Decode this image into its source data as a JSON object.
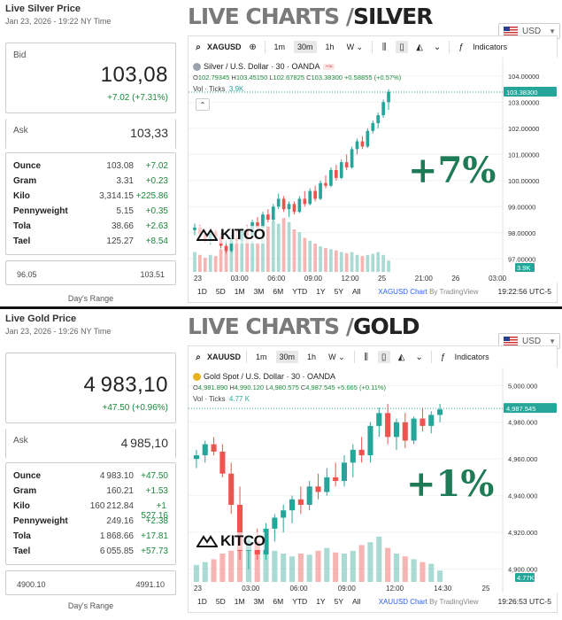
{
  "silver": {
    "card": {
      "title": "Live Silver Price",
      "date": "Jan 23, 2026 - 19:22 NY Time",
      "currency": "USD",
      "bid_label": "Bid",
      "bid": "103,08",
      "change": "+7.02 (+7.31%)",
      "ask_label": "Ask",
      "ask": "103,33",
      "units": [
        {
          "unit": "Ounce",
          "price": "103.08",
          "change": "+7.02"
        },
        {
          "unit": "Gram",
          "price": "3.31",
          "change": "+0.23"
        },
        {
          "unit": "Kilo",
          "price": "3,314.15",
          "change": "+225.86"
        },
        {
          "unit": "Pennyweight",
          "price": "5.15",
          "change": "+0.35"
        },
        {
          "unit": "Tola",
          "price": "38.66",
          "change": "+2.63"
        },
        {
          "unit": "Tael",
          "price": "125.27",
          "change": "+8.54"
        }
      ],
      "range_low": "96.05",
      "range_high": "103.51",
      "range_label": "Day's Range"
    },
    "header_light": "LIVE CHARTS / ",
    "header_dark": "SILVER",
    "toolbar": {
      "symbol": "XAGUSD",
      "intervals": [
        "1m",
        "30m",
        "1h"
      ],
      "active_interval": "30m",
      "w": "W",
      "indicators": "Indicators"
    },
    "legend": {
      "name": "Silver / U.S. Dollar · 30 · OANDA",
      "o": "102.79345",
      "h": "103.45150",
      "l": "102.67825",
      "c": "103.38300",
      "chg": "+0.58855 (+0.57%)",
      "vol_label": "Vol · Ticks",
      "vol": "3.9K"
    },
    "bottom": {
      "ranges": [
        "1D",
        "5D",
        "1M",
        "3M",
        "6M",
        "YTD",
        "1Y",
        "5Y",
        "All"
      ],
      "source": "XAGUSD Chart",
      "by": "By TradingView",
      "time": "19:22:56 UTC-5"
    },
    "pct": "+7%",
    "logo": "KITCO",
    "colors": {
      "up": "#26a69a",
      "down": "#ef5350",
      "price_tag": "#26a69a",
      "accent": "#1e7a57"
    },
    "chart_data": {
      "type": "candlestick",
      "y_ticks": [
        "104.00000",
        "103.00000",
        "102.00000",
        "101.00000",
        "100.00000",
        "99.00000",
        "98.00000",
        "97.00000"
      ],
      "ylim": [
        96.5,
        104.3
      ],
      "x_ticks": [
        "23",
        "03:00",
        "06:00",
        "09:00",
        "12:00",
        "25",
        "21:00",
        "26",
        "03:00"
      ],
      "last_price": "103.38300",
      "volume_tag": "3.9K",
      "candles": [
        [
          98.1,
          98.35,
          97.9,
          98.2
        ],
        [
          98.2,
          98.3,
          97.85,
          97.95
        ],
        [
          97.95,
          98.15,
          97.6,
          97.7
        ],
        [
          97.7,
          98.1,
          97.55,
          98.05
        ],
        [
          98.05,
          98.15,
          97.8,
          97.85
        ],
        [
          97.85,
          98.0,
          97.4,
          97.5
        ],
        [
          97.5,
          97.7,
          97.2,
          97.3
        ],
        [
          97.3,
          97.9,
          97.25,
          97.8
        ],
        [
          97.8,
          98.1,
          97.6,
          97.7
        ],
        [
          97.7,
          98.2,
          97.6,
          98.1
        ],
        [
          98.1,
          98.3,
          97.8,
          97.9
        ],
        [
          97.9,
          98.5,
          97.85,
          98.4
        ],
        [
          98.4,
          98.6,
          98.1,
          98.2
        ],
        [
          98.2,
          98.8,
          98.15,
          98.7
        ],
        [
          98.7,
          98.9,
          98.4,
          98.5
        ],
        [
          98.5,
          99.1,
          98.45,
          99.0
        ],
        [
          99.0,
          99.5,
          98.9,
          99.3
        ],
        [
          99.3,
          99.4,
          98.8,
          98.9
        ],
        [
          98.9,
          99.2,
          98.6,
          99.1
        ],
        [
          99.1,
          99.2,
          98.7,
          98.8
        ],
        [
          98.8,
          99.4,
          98.75,
          99.3
        ],
        [
          99.3,
          99.6,
          99.0,
          99.1
        ],
        [
          99.1,
          99.7,
          99.05,
          99.6
        ],
        [
          99.6,
          99.8,
          99.2,
          99.3
        ],
        [
          99.3,
          100.0,
          99.25,
          99.9
        ],
        [
          99.9,
          100.2,
          99.7,
          99.8
        ],
        [
          99.8,
          100.5,
          99.75,
          100.4
        ],
        [
          100.4,
          100.6,
          100.0,
          100.1
        ],
        [
          100.1,
          100.8,
          100.05,
          100.7
        ],
        [
          100.7,
          101.0,
          100.4,
          100.5
        ],
        [
          100.5,
          101.3,
          100.45,
          101.2
        ],
        [
          101.2,
          101.6,
          101.0,
          101.5
        ],
        [
          101.5,
          101.7,
          101.2,
          101.3
        ],
        [
          101.3,
          102.0,
          101.25,
          101.9
        ],
        [
          101.9,
          102.3,
          101.8,
          102.2
        ],
        [
          102.2,
          102.6,
          102.0,
          102.5
        ],
        [
          102.5,
          103.1,
          102.4,
          103.0
        ],
        [
          103.0,
          103.5,
          102.7,
          103.4
        ]
      ],
      "volumes": [
        0.35,
        0.3,
        0.25,
        0.3,
        0.28,
        0.4,
        0.45,
        0.5,
        0.55,
        0.6,
        0.65,
        0.55,
        0.5,
        0.7,
        0.8,
        0.9,
        0.85,
        0.95,
        0.88,
        0.75,
        0.7,
        0.6,
        0.55,
        0.5,
        0.45,
        0.42,
        0.4,
        0.38,
        0.35,
        0.33,
        0.35,
        0.3,
        0.28,
        0.3,
        0.32,
        0.35,
        0.3,
        0.2
      ]
    }
  },
  "gold": {
    "card": {
      "title": "Live Gold Price",
      "date": "Jan 23, 2026 - 19:26 NY Time",
      "currency": "USD",
      "bid_label": "Bid",
      "bid": "4 983,10",
      "change": "+47.50 (+0.96%)",
      "ask_label": "Ask",
      "ask": "4 985,10",
      "units": [
        {
          "unit": "Ounce",
          "price": "4 983.10",
          "change": "+47.50"
        },
        {
          "unit": "Gram",
          "price": "160.21",
          "change": "+1.53"
        },
        {
          "unit": "Kilo",
          "price": "160 212.84",
          "change": "+1 527.16"
        },
        {
          "unit": "Pennyweight",
          "price": "249.16",
          "change": "+2.38"
        },
        {
          "unit": "Tola",
          "price": "1 868.66",
          "change": "+17.81"
        },
        {
          "unit": "Tael",
          "price": "6 055.85",
          "change": "+57.73"
        }
      ],
      "range_low": "4900.10",
      "range_high": "4991.10",
      "range_label": "Day's Range"
    },
    "header_light": "LIVE CHARTS / ",
    "header_dark": "GOLD",
    "toolbar": {
      "symbol": "XAUUSD",
      "intervals": [
        "1m",
        "30m",
        "1h"
      ],
      "active_interval": "30m",
      "w": "W",
      "indicators": "Indicators"
    },
    "legend": {
      "name": "Gold Spot / U.S. Dollar · 30 · OANDA",
      "o": "4,981.890",
      "h": "4,990.120",
      "l": "4,980.575",
      "c": "4,987.545",
      "chg": "+5.665 (+0.11%)",
      "vol_label": "Vol · Ticks",
      "vol": "4.77 K"
    },
    "bottom": {
      "ranges": [
        "1D",
        "5D",
        "1M",
        "3M",
        "6M",
        "YTD",
        "1Y",
        "5Y",
        "All"
      ],
      "source": "XAUUSD Chart",
      "by": "By TradingView",
      "time": "19:26:53 UTC-5"
    },
    "pct": "+1%",
    "logo": "KITCO",
    "colors": {
      "up": "#26a69a",
      "down": "#ef5350",
      "price_tag": "#26a69a",
      "accent": "#1e7a57"
    },
    "chart_data": {
      "type": "candlestick",
      "y_ticks": [
        "5,000.000",
        "4,980.000",
        "4,960.000",
        "4,940.000",
        "4,920.000",
        "4,900.000"
      ],
      "ylim": [
        4893,
        5004
      ],
      "x_ticks": [
        "23",
        "03:00",
        "06:00",
        "09:00",
        "12:00",
        "14:30",
        "25"
      ],
      "last_price": "4,987.545",
      "volume_tag": "4.77K",
      "candles": [
        [
          4960,
          4965,
          4955,
          4962
        ],
        [
          4962,
          4970,
          4958,
          4968
        ],
        [
          4968,
          4972,
          4962,
          4964
        ],
        [
          4964,
          4968,
          4950,
          4952
        ],
        [
          4952,
          4958,
          4930,
          4935
        ],
        [
          4935,
          4945,
          4905,
          4910
        ],
        [
          4910,
          4918,
          4900,
          4915
        ],
        [
          4915,
          4922,
          4905,
          4908
        ],
        [
          4908,
          4925,
          4905,
          4922
        ],
        [
          4922,
          4930,
          4915,
          4928
        ],
        [
          4928,
          4935,
          4920,
          4932
        ],
        [
          4932,
          4940,
          4925,
          4938
        ],
        [
          4938,
          4945,
          4930,
          4935
        ],
        [
          4935,
          4948,
          4932,
          4945
        ],
        [
          4945,
          4952,
          4938,
          4942
        ],
        [
          4942,
          4955,
          4940,
          4950
        ],
        [
          4950,
          4958,
          4945,
          4948
        ],
        [
          4948,
          4962,
          4945,
          4958
        ],
        [
          4958,
          4968,
          4950,
          4965
        ],
        [
          4965,
          4972,
          4958,
          4962
        ],
        [
          4962,
          4980,
          4958,
          4978
        ],
        [
          4978,
          4988,
          4972,
          4985
        ],
        [
          4985,
          4990,
          4968,
          4972
        ],
        [
          4972,
          4982,
          4965,
          4980
        ],
        [
          4980,
          4985,
          4966,
          4970
        ],
        [
          4970,
          4983,
          4968,
          4982
        ],
        [
          4982,
          4988,
          4975,
          4978
        ],
        [
          4978,
          4986,
          4974,
          4984
        ],
        [
          4984,
          4990,
          4980,
          4987
        ]
      ],
      "volumes": [
        0.3,
        0.35,
        0.4,
        0.5,
        0.55,
        0.75,
        0.8,
        0.7,
        0.6,
        0.55,
        0.5,
        0.45,
        0.5,
        0.48,
        0.55,
        0.6,
        0.52,
        0.5,
        0.55,
        0.65,
        0.7,
        0.8,
        0.6,
        0.5,
        0.45,
        0.4,
        0.35,
        0.32,
        0.2
      ]
    }
  }
}
